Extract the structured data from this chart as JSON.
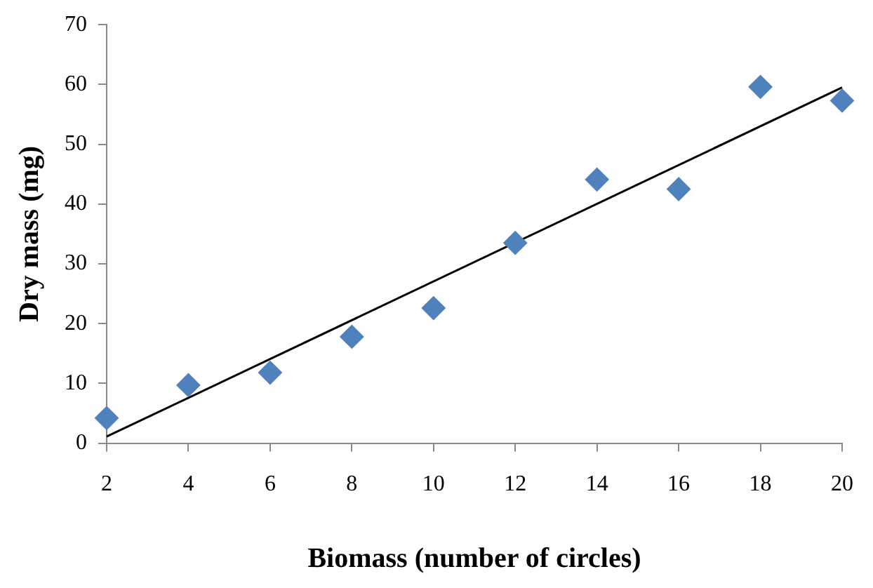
{
  "chart_data": {
    "type": "scatter",
    "xlabel": "Biomass (number of circles)",
    "ylabel": "Dry mass (mg)",
    "x": [
      2,
      4,
      6,
      8,
      10,
      12,
      14,
      16,
      18,
      20
    ],
    "series": [
      {
        "color": "#4f81bd",
        "marker": "diamond",
        "values": [
          4.2,
          9.7,
          11.8,
          17.8,
          22.6,
          33.5,
          44.1,
          42.5,
          59.6,
          57.3
        ]
      },
      {
        "type": "line",
        "color": "#000000",
        "marker": "none",
        "line_style": "solid",
        "x": [
          2,
          20
        ],
        "values": [
          1.1,
          59.5
        ]
      }
    ],
    "xlim": [
      2,
      20
    ],
    "xticks": [
      2,
      4,
      6,
      8,
      10,
      12,
      14,
      16,
      18,
      20
    ],
    "ylim": [
      0,
      70
    ],
    "yticks": [
      0,
      10,
      20,
      30,
      40,
      50,
      60,
      70
    ],
    "grid": false,
    "legend": false
  }
}
